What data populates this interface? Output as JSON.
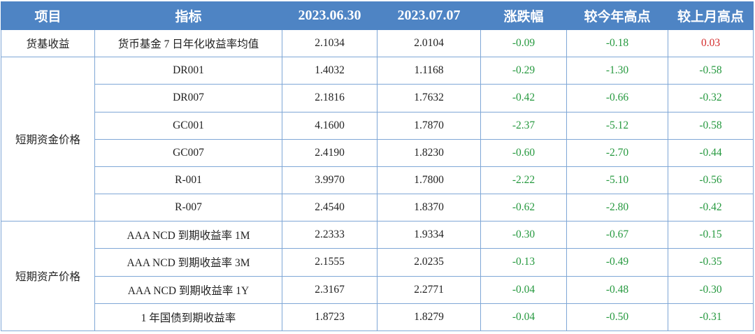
{
  "table": {
    "headers": [
      "项目",
      "指标",
      "2023.06.30",
      "2023.07.07",
      "涨跌幅",
      "较今年高点",
      "较上月高点"
    ],
    "groups": [
      {
        "category": "货基收益",
        "rows": [
          {
            "indicator": "货币基金 7 日年化收益率均值",
            "v0630": "2.1034",
            "v0707": "2.0104",
            "change": "-0.09",
            "vs_year_high": "-0.18",
            "vs_month_high": "0.03"
          }
        ]
      },
      {
        "category": "短期资金价格",
        "rows": [
          {
            "indicator": "DR001",
            "v0630": "1.4032",
            "v0707": "1.1168",
            "change": "-0.29",
            "vs_year_high": "-1.30",
            "vs_month_high": "-0.58"
          },
          {
            "indicator": "DR007",
            "v0630": "2.1816",
            "v0707": "1.7632",
            "change": "-0.42",
            "vs_year_high": "-0.66",
            "vs_month_high": "-0.32"
          },
          {
            "indicator": "GC001",
            "v0630": "4.1600",
            "v0707": "1.7870",
            "change": "-2.37",
            "vs_year_high": "-5.12",
            "vs_month_high": "-0.58"
          },
          {
            "indicator": "GC007",
            "v0630": "2.4190",
            "v0707": "1.8230",
            "change": "-0.60",
            "vs_year_high": "-2.70",
            "vs_month_high": "-0.44"
          },
          {
            "indicator": "R-001",
            "v0630": "3.9970",
            "v0707": "1.7800",
            "change": "-2.22",
            "vs_year_high": "-5.10",
            "vs_month_high": "-0.56"
          },
          {
            "indicator": "R-007",
            "v0630": "2.4540",
            "v0707": "1.8370",
            "change": "-0.62",
            "vs_year_high": "-2.80",
            "vs_month_high": "-0.42"
          }
        ]
      },
      {
        "category": "短期资产价格",
        "rows": [
          {
            "indicator": "AAA NCD 到期收益率 1M",
            "v0630": "2.2333",
            "v0707": "1.9334",
            "change": "-0.30",
            "vs_year_high": "-0.67",
            "vs_month_high": "-0.15"
          },
          {
            "indicator": "AAA NCD 到期收益率 3M",
            "v0630": "2.1555",
            "v0707": "2.0235",
            "change": "-0.13",
            "vs_year_high": "-0.49",
            "vs_month_high": "-0.35"
          },
          {
            "indicator": "AAA NCD 到期收益率 1Y",
            "v0630": "2.3167",
            "v0707": "2.2771",
            "change": "-0.04",
            "vs_year_high": "-0.48",
            "vs_month_high": "-0.30"
          },
          {
            "indicator": "1 年国债到期收益率",
            "v0630": "1.8723",
            "v0707": "1.8279",
            "change": "-0.04",
            "vs_year_high": "-0.50",
            "vs_month_high": "-0.31"
          }
        ]
      }
    ]
  },
  "colors": {
    "header_bg": "#4e84c4",
    "header_text": "#ffffff",
    "border": "#7fa7d6",
    "positive": "#d42b2b",
    "negative": "#26993f"
  }
}
